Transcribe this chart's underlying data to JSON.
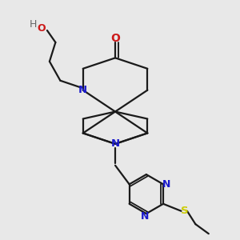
{
  "bg_color": "#e8e8e8",
  "bond_color": "#1a1a1a",
  "N_color": "#1a1acc",
  "O_color": "#cc1a1a",
  "S_color": "#cccc00",
  "H_color": "#666666",
  "bond_width": 1.6,
  "font_size": 9.5,
  "figsize": [
    3.0,
    3.0
  ],
  "dpi": 100,
  "xlim": [
    0,
    10
  ],
  "ylim": [
    0,
    10
  ]
}
